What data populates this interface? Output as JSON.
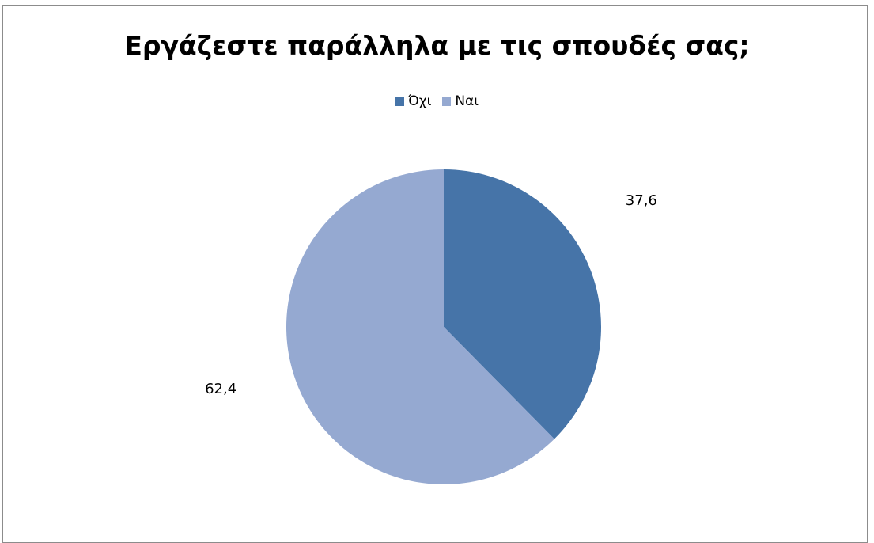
{
  "chart_data": {
    "type": "pie",
    "title": "Εργάζεστε παράλληλα με τις σπουδές σας;",
    "legend_position": "top",
    "slices": [
      {
        "label": "Όχι",
        "value": 37.6,
        "display": "37,6",
        "color": "#4674a8"
      },
      {
        "label": "Ναι",
        "value": 62.4,
        "display": "62,4",
        "color": "#95a9d1"
      }
    ]
  }
}
